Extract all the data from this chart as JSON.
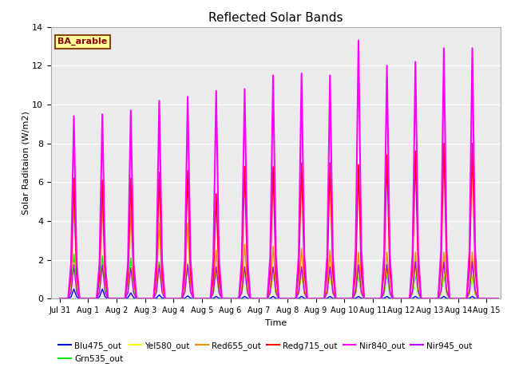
{
  "title": "Reflected Solar Bands",
  "xlabel": "Time",
  "ylabel": "Solar Raditaion (W/m2)",
  "ylim": [
    0,
    14
  ],
  "plot_bg_color": "#ebebeb",
  "annotation_text": "BA_arable",
  "annotation_bg": "#ffff99",
  "annotation_border": "#8B4513",
  "annotation_text_color": "#8B0000",
  "series_order": [
    "Blu475_out",
    "Grn535_out",
    "Yel580_out",
    "Red655_out",
    "Redg715_out",
    "Nir840_out",
    "Nir945_out"
  ],
  "series_colors": {
    "Blu475_out": "#0000ff",
    "Grn535_out": "#00ee00",
    "Yel580_out": "#ffff00",
    "Red655_out": "#ff8800",
    "Redg715_out": "#ff0000",
    "Nir840_out": "#ff00ff",
    "Nir945_out": "#bb00ff"
  },
  "series_lw": {
    "Blu475_out": 1.0,
    "Grn535_out": 1.0,
    "Yel580_out": 1.0,
    "Red655_out": 1.0,
    "Redg715_out": 1.2,
    "Nir840_out": 1.5,
    "Nir945_out": 1.0
  },
  "xtick_labels": [
    "Jul 31",
    "Aug 1",
    "Aug 2",
    "Aug 3",
    "Aug 4",
    "Aug 5",
    "Aug 6",
    "Aug 7",
    "Aug 8",
    "Aug 9",
    "Aug 10",
    "Aug 11",
    "Aug 12",
    "Aug 13",
    "Aug 14",
    "Aug 15"
  ],
  "ytick_labels": [
    0,
    2,
    4,
    6,
    8,
    10,
    12,
    14
  ],
  "sigma": 0.055,
  "day_peaks": {
    "Blu475_out": [
      0.5,
      0.5,
      0.3,
      0.2,
      0.15,
      0.12,
      0.12,
      0.12,
      0.12,
      0.12,
      0.12,
      0.12,
      0.12,
      0.12,
      0.12
    ],
    "Grn535_out": [
      2.3,
      2.2,
      2.1,
      1.9,
      1.8,
      1.4,
      1.4,
      1.35,
      1.4,
      1.35,
      1.25,
      1.25,
      1.25,
      1.25,
      1.25
    ],
    "Yel580_out": [
      1.85,
      1.75,
      1.65,
      1.75,
      1.75,
      1.5,
      1.5,
      1.4,
      1.4,
      1.4,
      1.5,
      1.5,
      1.5,
      1.5,
      1.5
    ],
    "Red655_out": [
      5.0,
      4.8,
      4.5,
      3.9,
      3.9,
      2.5,
      2.8,
      2.7,
      2.6,
      2.5,
      2.4,
      2.4,
      2.4,
      2.4,
      2.4
    ],
    "Redg715_out": [
      6.2,
      6.1,
      6.2,
      6.5,
      6.6,
      5.4,
      6.8,
      6.8,
      7.0,
      7.0,
      6.9,
      7.4,
      7.6,
      8.0,
      8.0
    ],
    "Nir840_out": [
      9.4,
      9.5,
      9.7,
      10.2,
      10.4,
      10.7,
      10.8,
      11.5,
      11.6,
      11.5,
      13.3,
      12.0,
      12.2,
      12.9,
      12.9
    ],
    "Nir945_out": [
      1.75,
      1.75,
      1.6,
      1.75,
      1.75,
      1.65,
      1.65,
      1.65,
      1.65,
      1.65,
      1.75,
      1.75,
      1.9,
      1.9,
      1.9
    ]
  }
}
